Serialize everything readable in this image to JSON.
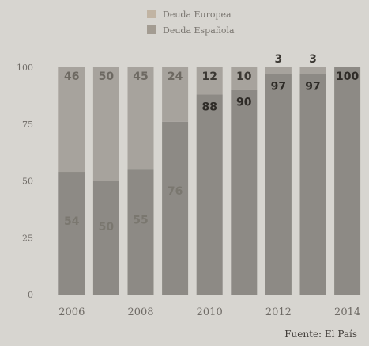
{
  "chart_data": {
    "type": "bar",
    "stacked": true,
    "categories": [
      "2006",
      "2007",
      "2008",
      "2009",
      "2010",
      "2011",
      "2012",
      "2013",
      "2014"
    ],
    "x_tick_labels": [
      "2006",
      "2008",
      "2010",
      "2012",
      "2014"
    ],
    "series": [
      {
        "name": "Deuda Europea",
        "values": [
          54,
          50,
          55,
          76,
          88,
          90,
          97,
          97,
          100
        ],
        "color": "#8d8a85",
        "label_color": "#7a776f"
      },
      {
        "name": "Deuda Española",
        "values": [
          46,
          50,
          45,
          24,
          12,
          10,
          3,
          3,
          0
        ],
        "color": "#a7a39d",
        "label_color": "#6d6962"
      }
    ],
    "data_labels": {
      "bottom": [
        "54",
        "50",
        "55",
        "76",
        "88",
        "90",
        "97",
        "97",
        "100"
      ],
      "top": [
        "46",
        "50",
        "45",
        "24",
        "12",
        "10",
        "3",
        "3",
        ""
      ]
    },
    "ylim": [
      0,
      100
    ],
    "y_ticks": [
      0,
      25,
      50,
      75,
      100
    ],
    "y_tick_labels": [
      "0",
      "25",
      "50",
      "75",
      "100"
    ],
    "grid": false,
    "legend_position": "top-center"
  },
  "legend": {
    "items": [
      {
        "label": "Deuda Europea",
        "color": "#c1b4a3"
      },
      {
        "label": "Deuda Española",
        "color": "#a39c92"
      }
    ]
  },
  "source": "Fuente: El País"
}
